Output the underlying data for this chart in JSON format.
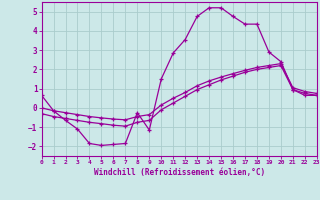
{
  "xlabel": "Windchill (Refroidissement éolien,°C)",
  "bg_color": "#cce8e8",
  "grid_color": "#aacccc",
  "line_color": "#990099",
  "xlim": [
    0,
    23
  ],
  "ylim": [
    -2.5,
    5.5
  ],
  "yticks": [
    -2,
    -1,
    0,
    1,
    2,
    3,
    4,
    5
  ],
  "xticks": [
    0,
    1,
    2,
    3,
    4,
    5,
    6,
    7,
    8,
    9,
    10,
    11,
    12,
    13,
    14,
    15,
    16,
    17,
    18,
    19,
    20,
    21,
    22,
    23
  ],
  "series1_x": [
    0,
    1,
    2,
    3,
    4,
    5,
    6,
    7,
    8,
    9,
    10,
    11,
    12,
    13,
    14,
    15,
    16,
    17,
    18,
    19,
    20,
    21,
    22,
    23
  ],
  "series1_y": [
    0.65,
    -0.15,
    -0.65,
    -1.1,
    -1.85,
    -1.95,
    -1.9,
    -1.85,
    -0.25,
    -1.15,
    1.5,
    2.85,
    3.55,
    4.75,
    5.2,
    5.2,
    4.75,
    4.35,
    4.35,
    2.9,
    2.4,
    0.95,
    0.65,
    0.65
  ],
  "series2_x": [
    0,
    1,
    2,
    3,
    4,
    5,
    6,
    7,
    8,
    9,
    10,
    11,
    12,
    13,
    14,
    15,
    16,
    17,
    18,
    19,
    20,
    21,
    22,
    23
  ],
  "series2_y": [
    -0.3,
    -0.45,
    -0.55,
    -0.65,
    -0.75,
    -0.82,
    -0.9,
    -0.95,
    -0.75,
    -0.65,
    -0.1,
    0.25,
    0.6,
    0.95,
    1.2,
    1.45,
    1.65,
    1.85,
    2.0,
    2.1,
    2.2,
    0.95,
    0.75,
    0.65
  ],
  "series3_x": [
    0,
    1,
    2,
    3,
    4,
    5,
    6,
    7,
    8,
    9,
    10,
    11,
    12,
    13,
    14,
    15,
    16,
    17,
    18,
    19,
    20,
    21,
    22,
    23
  ],
  "series3_y": [
    0.0,
    -0.15,
    -0.25,
    -0.35,
    -0.45,
    -0.52,
    -0.58,
    -0.62,
    -0.45,
    -0.35,
    0.15,
    0.5,
    0.8,
    1.15,
    1.4,
    1.6,
    1.78,
    1.95,
    2.1,
    2.2,
    2.3,
    1.05,
    0.85,
    0.75
  ]
}
